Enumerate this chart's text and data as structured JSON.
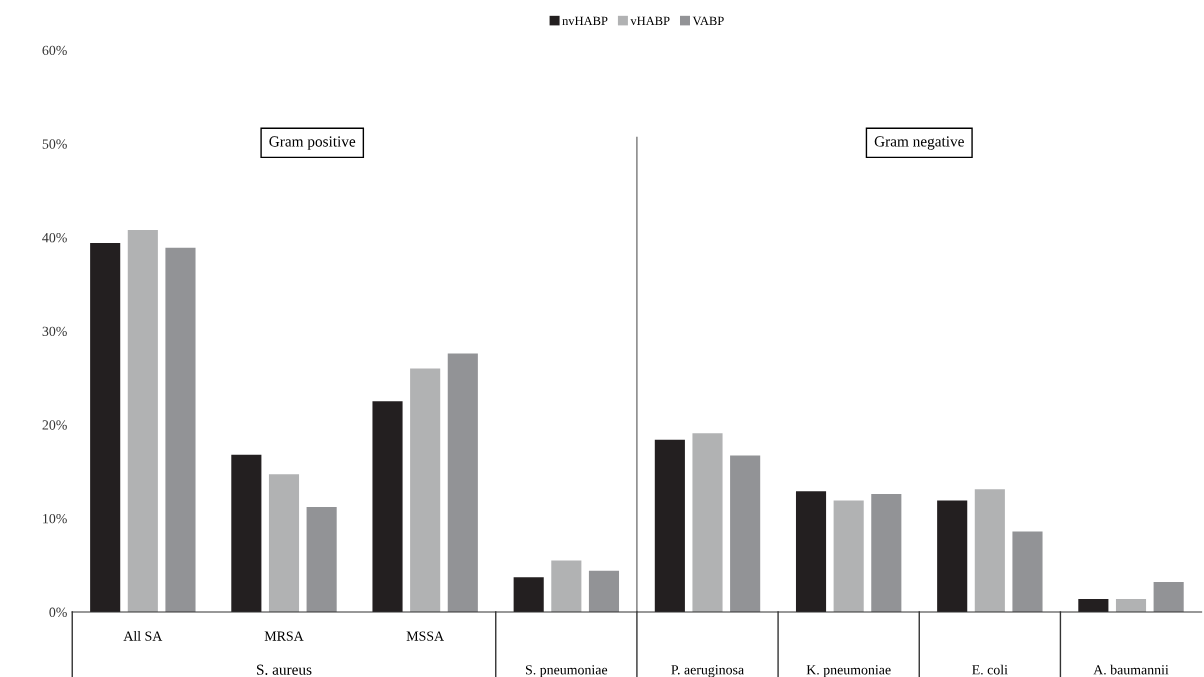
{
  "chart_data": {
    "type": "bar",
    "categories": [
      "All SA",
      "MRSA",
      "MSSA",
      "S. pneumoniae",
      "P. aeruginosa",
      "K. pneumoniae",
      "E. coli",
      "A. baumannii"
    ],
    "series": [
      {
        "name": "nvHABP",
        "color": "#231f20",
        "values": [
          39.4,
          16.8,
          22.5,
          3.7,
          18.4,
          12.9,
          11.9,
          1.4
        ]
      },
      {
        "name": "vHABP",
        "color": "#b1b2b3",
        "values": [
          40.8,
          14.7,
          26.0,
          5.5,
          19.1,
          11.9,
          13.1,
          1.4
        ]
      },
      {
        "name": "VABP",
        "color": "#929396",
        "values": [
          38.9,
          11.2,
          27.6,
          4.4,
          16.7,
          12.6,
          8.6,
          3.2
        ]
      }
    ],
    "annotations": [
      "Gram positive",
      "Gram negative",
      "S. aureus"
    ],
    "ylim": [
      0,
      60
    ],
    "yticks": [
      {
        "value": 0,
        "label": "0%"
      },
      {
        "value": 10,
        "label": "10%"
      },
      {
        "value": 20,
        "label": "20%"
      },
      {
        "value": 30,
        "label": "30%"
      },
      {
        "value": 40,
        "label": "40%"
      },
      {
        "value": 50,
        "label": "50%"
      },
      {
        "value": 60,
        "label": "60%"
      }
    ],
    "grid": false,
    "legend": "top"
  }
}
